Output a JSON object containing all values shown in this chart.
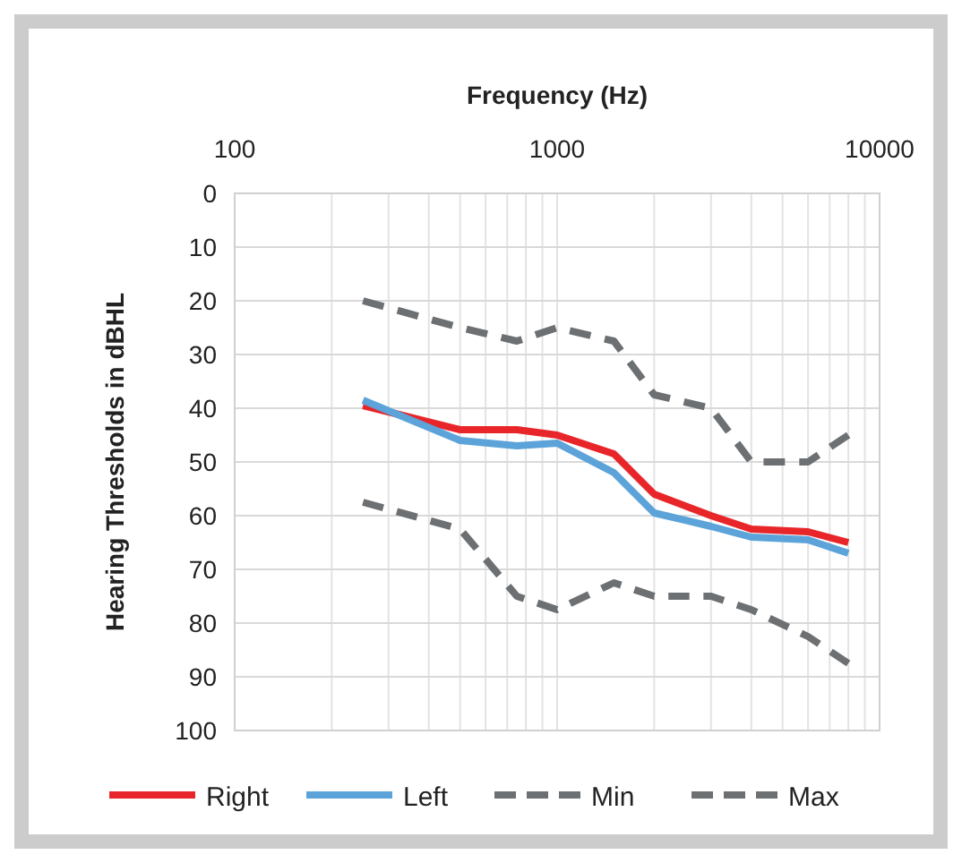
{
  "chart_data": {
    "type": "line",
    "xlabel": "Frequency (Hz)",
    "ylabel": "Hearing Thresholds in dBHL",
    "x": [
      250,
      500,
      750,
      1000,
      1500,
      2000,
      3000,
      4000,
      6000,
      8000
    ],
    "series": [
      {
        "name": "Right",
        "color": "#e8262a",
        "values": [
          39.5,
          44,
          44,
          45,
          48.5,
          56,
          60,
          62.5,
          63,
          65
        ]
      },
      {
        "name": "Left",
        "color": "#5ba3d9",
        "values": [
          38.5,
          46,
          47,
          46.5,
          52,
          59.5,
          62,
          64,
          64.5,
          67
        ]
      },
      {
        "name": "Min",
        "color": "#6d7073",
        "line_style": "dashed",
        "values": [
          20,
          25,
          27.5,
          25,
          27.5,
          37.5,
          40,
          50,
          50,
          45
        ]
      },
      {
        "name": "Max",
        "color": "#6d7073",
        "line_style": "dashed",
        "values": [
          57.5,
          62.5,
          75,
          77.5,
          72.5,
          75,
          75,
          77.5,
          82.5,
          87.5
        ]
      }
    ],
    "log": "x",
    "xlim": [
      100,
      10000
    ],
    "xticks": [
      100,
      {
        "value": 200,
        "label": null
      },
      {
        "value": 300,
        "label": null
      },
      {
        "value": 400,
        "label": null
      },
      {
        "value": 500,
        "label": null
      },
      {
        "value": 600,
        "label": null
      },
      {
        "value": 700,
        "label": null
      },
      {
        "value": 800,
        "label": null
      },
      {
        "value": 900,
        "label": null
      },
      1000,
      {
        "value": 2000,
        "label": null
      },
      {
        "value": 3000,
        "label": null
      },
      {
        "value": 4000,
        "label": null
      },
      {
        "value": 5000,
        "label": null
      },
      {
        "value": 6000,
        "label": null
      },
      {
        "value": 7000,
        "label": null
      },
      {
        "value": 8000,
        "label": null
      },
      {
        "value": 9000,
        "label": null
      },
      10000
    ],
    "ylim": [
      100,
      0
    ],
    "yticks": [
      0,
      10,
      20,
      30,
      40,
      50,
      60,
      70,
      80,
      90,
      100
    ],
    "grid": true,
    "legend": "bottom",
    "line_style": "solid"
  }
}
